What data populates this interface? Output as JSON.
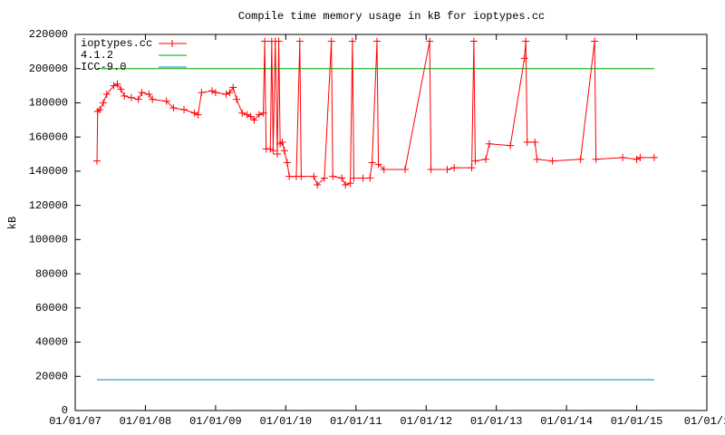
{
  "chart_data": {
    "type": "line",
    "title": "Compile time memory usage in kB for ioptypes.cc",
    "y_label": "kB",
    "xlim": [
      2007,
      2016
    ],
    "xticks": [
      {
        "value": 2007,
        "label": "01/01/07"
      },
      {
        "value": 2008,
        "label": "01/01/08"
      },
      {
        "value": 2009,
        "label": "01/01/09"
      },
      {
        "value": 2010,
        "label": "01/01/10"
      },
      {
        "value": 2011,
        "label": "01/01/11"
      },
      {
        "value": 2012,
        "label": "01/01/12"
      },
      {
        "value": 2013,
        "label": "01/01/13"
      },
      {
        "value": 2014,
        "label": "01/01/14"
      },
      {
        "value": 2015,
        "label": "01/01/15"
      },
      {
        "value": 2016,
        "label": "01/01/1"
      }
    ],
    "ylim": [
      0,
      220000
    ],
    "yticks": [
      0,
      20000,
      40000,
      60000,
      80000,
      100000,
      120000,
      140000,
      160000,
      180000,
      200000,
      220000
    ],
    "grid": false,
    "legend": "top-left",
    "series": [
      {
        "name": "ioptypes.cc",
        "color": "#ff0000",
        "markers": true,
        "x": [
          2007.31,
          2007.32,
          2007.35,
          2007.4,
          2007.45,
          2007.55,
          2007.6,
          2007.65,
          2007.7,
          2007.8,
          2007.9,
          2007.95,
          2008.05,
          2008.1,
          2008.3,
          2008.4,
          2008.55,
          2008.7,
          2008.75,
          2008.8,
          2008.95,
          2009.0,
          2009.15,
          2009.2,
          2009.25,
          2009.3,
          2009.38,
          2009.45,
          2009.5,
          2009.55,
          2009.62,
          2009.68,
          2009.7,
          2009.72,
          2009.78,
          2009.8,
          2009.82,
          2009.85,
          2009.88,
          2009.9,
          2009.92,
          2009.95,
          2009.98,
          2010.02,
          2010.05,
          2010.15,
          2010.2,
          2010.22,
          2010.4,
          2010.45,
          2010.55,
          2010.65,
          2010.67,
          2010.8,
          2010.85,
          2010.92,
          2010.95,
          2010.97,
          2011.1,
          2011.2,
          2011.23,
          2011.3,
          2011.32,
          2011.4,
          2011.7,
          2012.05,
          2012.07,
          2012.3,
          2012.4,
          2012.65,
          2012.68,
          2012.7,
          2012.85,
          2012.9,
          2013.2,
          2013.4,
          2013.42,
          2013.44,
          2013.55,
          2013.58,
          2013.8,
          2014.2,
          2014.4,
          2014.42,
          2014.8,
          2015.0,
          2015.05,
          2015.25
        ],
        "values": [
          146000,
          175000,
          176000,
          180000,
          185000,
          190000,
          191000,
          188000,
          184000,
          183000,
          182000,
          186000,
          185000,
          182000,
          181000,
          177000,
          176000,
          174000,
          173000,
          186000,
          187000,
          186000,
          185000,
          186000,
          189000,
          182000,
          174000,
          173000,
          172000,
          170000,
          173000,
          174000,
          216000,
          153000,
          153000,
          216000,
          152000,
          216000,
          150000,
          216000,
          156000,
          157000,
          152000,
          145000,
          137000,
          137000,
          216000,
          137000,
          137000,
          132000,
          136000,
          216000,
          137000,
          136000,
          132000,
          133000,
          216000,
          136000,
          136000,
          136000,
          145000,
          216000,
          144000,
          141000,
          141000,
          216000,
          141000,
          141000,
          142000,
          142000,
          216000,
          146000,
          147000,
          156000,
          155000,
          206000,
          216000,
          157000,
          157000,
          147000,
          146000,
          147000,
          216000,
          147000,
          148000,
          147000,
          148000,
          148000
        ]
      },
      {
        "name": "4.1.2",
        "color": "#00a000",
        "markers": false,
        "x": [
          2007.31,
          2015.25
        ],
        "values": [
          200000,
          200000
        ]
      },
      {
        "name": "ICC-9.0",
        "color": "#0080c0",
        "markers": false,
        "x": [
          2007.31,
          2015.25
        ],
        "values": [
          18000,
          18000
        ]
      }
    ]
  }
}
